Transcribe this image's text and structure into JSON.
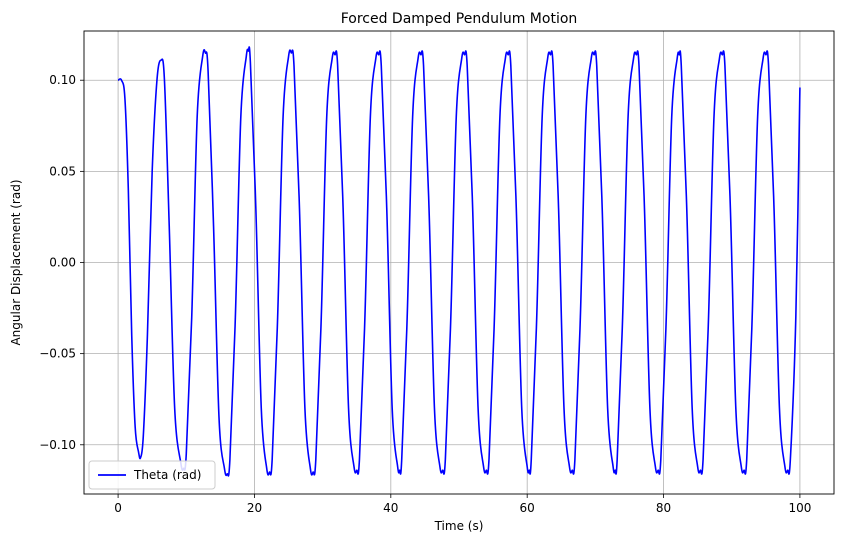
{
  "chart_data": {
    "type": "line",
    "title": "Forced Damped Pendulum Motion",
    "xlabel": "Time (s)",
    "ylabel": "Angular Displacement (rad)",
    "xlim": [
      -5,
      105
    ],
    "ylim": [
      -0.127,
      0.127
    ],
    "xticks": [
      0,
      20,
      40,
      60,
      80,
      100
    ],
    "xtick_labels": [
      "0",
      "20",
      "40",
      "60",
      "80",
      "100"
    ],
    "yticks": [
      -0.1,
      -0.05,
      0.0,
      0.05,
      0.1
    ],
    "ytick_labels": [
      "−0.10",
      "−0.05",
      "0.00",
      "0.05",
      "0.10"
    ],
    "grid": true,
    "legend_position": "bottom-left",
    "series": [
      {
        "name": "Theta (rad)",
        "color": "#0000ff",
        "x": [
          0.0,
          0.5,
          1.0,
          1.5,
          2.0,
          2.5,
          3.0,
          3.3,
          3.7,
          4.3,
          5.0,
          5.7,
          6.3,
          6.8,
          7.5,
          8.3,
          9.2,
          9.6,
          10.0,
          10.8,
          11.6,
          12.4,
          12.8,
          13.2,
          14.0,
          14.8,
          15.6,
          16.0,
          16.4,
          17.2,
          18.0,
          18.8,
          19.1,
          19.4,
          20.2,
          21.0,
          21.8,
          22.2,
          22.6,
          23.4,
          24.2,
          25.0,
          25.4,
          25.8,
          26.6,
          27.4,
          28.2,
          28.6,
          29.0,
          29.8,
          30.6,
          31.4,
          31.8,
          32.2,
          33.0,
          33.8,
          34.6,
          35.0,
          35.4,
          36.2,
          37.0,
          37.8,
          38.2,
          38.6,
          39.4,
          40.2,
          41.0,
          41.3,
          41.6,
          42.4,
          43.2,
          44.0,
          44.4,
          44.8,
          45.6,
          46.4,
          47.2,
          47.6,
          48.0,
          48.8,
          49.6,
          50.4,
          50.8,
          51.2,
          52.0,
          52.8,
          53.6,
          54.0,
          54.4,
          55.2,
          56.0,
          56.8,
          57.2,
          57.6,
          58.4,
          59.2,
          60.0,
          60.3,
          60.6,
          61.4,
          62.2,
          63.0,
          63.4,
          63.8,
          64.6,
          65.4,
          66.2,
          66.6,
          67.0,
          67.8,
          68.6,
          69.4,
          69.8,
          70.2,
          71.0,
          71.8,
          72.6,
          72.9,
          73.2,
          74.0,
          74.8,
          75.6,
          76.0,
          76.4,
          77.2,
          78.0,
          78.8,
          79.2,
          79.6,
          80.4,
          81.2,
          82.0,
          82.3,
          82.6,
          83.4,
          84.2,
          85.0,
          85.4,
          85.8,
          86.6,
          87.4,
          88.2,
          88.6,
          89.0,
          89.8,
          90.6,
          91.4,
          91.8,
          92.2,
          93.0,
          93.8,
          94.6,
          95.0,
          95.4,
          96.2,
          97.0,
          97.8,
          98.2,
          98.6,
          99.4,
          100.0
        ],
        "y": [
          0.1,
          0.1,
          0.09,
          0.04,
          -0.04,
          -0.09,
          -0.104,
          -0.107,
          -0.095,
          -0.04,
          0.05,
          0.1,
          0.111,
          0.1,
          0.02,
          -0.08,
          -0.11,
          -0.113,
          -0.105,
          -0.03,
          0.08,
          0.113,
          0.115,
          0.105,
          0.02,
          -0.085,
          -0.113,
          -0.116,
          -0.108,
          -0.03,
          0.08,
          0.113,
          0.116,
          0.11,
          0.03,
          -0.08,
          -0.113,
          -0.115,
          -0.108,
          -0.03,
          0.08,
          0.113,
          0.115,
          0.108,
          0.03,
          -0.08,
          -0.113,
          -0.115,
          -0.108,
          -0.03,
          0.08,
          0.112,
          0.114,
          0.108,
          0.03,
          -0.08,
          -0.112,
          -0.114,
          -0.108,
          -0.03,
          0.08,
          0.112,
          0.114,
          0.108,
          0.03,
          -0.08,
          -0.112,
          -0.114,
          -0.108,
          -0.03,
          0.08,
          0.112,
          0.114,
          0.108,
          0.03,
          -0.08,
          -0.112,
          -0.114,
          -0.108,
          -0.03,
          0.08,
          0.112,
          0.114,
          0.108,
          0.03,
          -0.08,
          -0.112,
          -0.114,
          -0.108,
          -0.03,
          0.08,
          0.112,
          0.114,
          0.108,
          0.03,
          -0.08,
          -0.112,
          -0.114,
          -0.108,
          -0.03,
          0.08,
          0.112,
          0.114,
          0.108,
          0.03,
          -0.08,
          -0.112,
          -0.114,
          -0.108,
          -0.03,
          0.08,
          0.112,
          0.114,
          0.108,
          0.03,
          -0.08,
          -0.112,
          -0.114,
          -0.108,
          -0.03,
          0.08,
          0.112,
          0.114,
          0.108,
          0.03,
          -0.08,
          -0.112,
          -0.114,
          -0.108,
          -0.03,
          0.08,
          0.112,
          0.114,
          0.108,
          0.03,
          -0.08,
          -0.112,
          -0.114,
          -0.108,
          -0.03,
          0.08,
          0.112,
          0.114,
          0.108,
          0.03,
          -0.08,
          -0.112,
          -0.114,
          -0.108,
          -0.03,
          0.08,
          0.112,
          0.114,
          0.108,
          0.03,
          -0.08,
          -0.112,
          -0.114,
          -0.108,
          -0.03,
          0.096
        ]
      }
    ]
  }
}
